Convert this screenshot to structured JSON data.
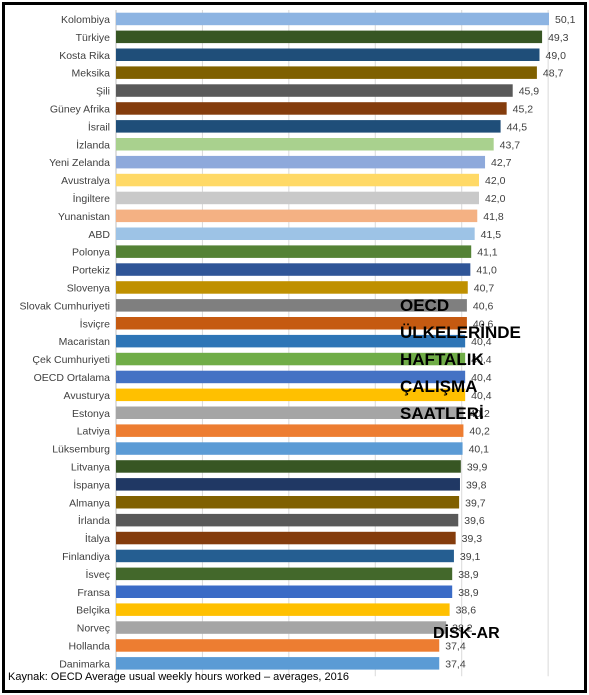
{
  "chart_data": {
    "type": "bar",
    "orientation": "horizontal",
    "categories": [
      "Kolombiya",
      "Türkiye",
      "Kosta Rika",
      "Meksika",
      "Şili",
      "Güney Afrika",
      "İsrail",
      "İzlanda",
      "Yeni Zelanda",
      "Avustralya",
      "İngiltere",
      "Yunanistan",
      "ABD",
      "Polonya",
      "Portekiz",
      "Slovenya",
      "Slovak Cumhuriyeti",
      "İsviçre",
      "Macaristan",
      "Çek Cumhuriyeti",
      "OECD Ortalama",
      "Avusturya",
      "Estonya",
      "Latviya",
      "Lüksemburg",
      "Litvanya",
      "İspanya",
      "Almanya",
      "İrlanda",
      "İtalya",
      "Finlandiya",
      "İsveç",
      "Fransa",
      "Belçika",
      "Norveç",
      "Hollanda",
      "Danimarka"
    ],
    "values": [
      50.1,
      49.3,
      49.0,
      48.7,
      45.9,
      45.2,
      44.5,
      43.7,
      42.7,
      42.0,
      42.0,
      41.8,
      41.5,
      41.1,
      41.0,
      40.7,
      40.6,
      40.6,
      40.4,
      40.4,
      40.4,
      40.4,
      40.2,
      40.2,
      40.1,
      39.9,
      39.8,
      39.7,
      39.6,
      39.3,
      39.1,
      38.9,
      38.9,
      38.6,
      38.2,
      37.4,
      37.4
    ],
    "value_labels": [
      "50,1",
      "49,3",
      "49,0",
      "48,7",
      "45,9",
      "45,2",
      "44,5",
      "43,7",
      "42,7",
      "42,0",
      "42,0",
      "41,8",
      "41,5",
      "41,1",
      "41,0",
      "40,7",
      "40,6",
      "40,6",
      "40,4",
      "40,4",
      "40,4",
      "40,4",
      "40,2",
      "40,2",
      "40,1",
      "39,9",
      "39,8",
      "39,7",
      "39,6",
      "39,3",
      "39,1",
      "38,9",
      "38,9",
      "38,6",
      "38,2",
      "37,4",
      "37,4"
    ],
    "colors": [
      "#8db4e2",
      "#375623",
      "#1f4e79",
      "#7f6000",
      "#595959",
      "#843c0c",
      "#1f4e79",
      "#a9d18e",
      "#8ea9db",
      "#ffd966",
      "#c9c9c9",
      "#f4b183",
      "#9dc3e6",
      "#548235",
      "#2f5597",
      "#bf9000",
      "#7f7f7f",
      "#c55a11",
      "#2e75b6",
      "#70ad47",
      "#4472c4",
      "#ffc000",
      "#a5a5a5",
      "#ed7d31",
      "#5b9bd5",
      "#375623",
      "#203864",
      "#806000",
      "#595959",
      "#843c0c",
      "#255e91",
      "#43682b",
      "#3a6bc6",
      "#ffc000",
      "#a5a5a5",
      "#ed7d31",
      "#5b9bd5"
    ],
    "xlim": [
      0,
      52
    ],
    "grid": true,
    "legend": "none"
  },
  "overlay_title": "OECD\nÜLKELERİNDE\nHAFTALIK\nÇALIŞMA\nSAATLERİ",
  "brand": "DİSK-AR",
  "source": "Kaynak: OECD Average usual weekly hours worked – averages, 2016"
}
